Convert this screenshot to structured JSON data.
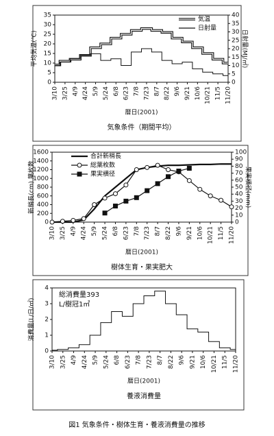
{
  "chart_data": [
    {
      "type": "step",
      "y_label": "平均気温(℃)",
      "y2_label": "日射量(MJ/㎡)",
      "x_label": "暦日(2001)",
      "subtitle": "気象条件（期間平均）",
      "categories": [
        "3/10",
        "3/25",
        "4/9",
        "4/24",
        "5/9",
        "5/24",
        "6/8",
        "6/23",
        "7/8",
        "7/23",
        "8/7",
        "8/22",
        "9/6",
        "9/21",
        "10/6",
        "10/21",
        "11/5",
        "11/20"
      ],
      "series": [
        {
          "name": "気温",
          "color": "#111111",
          "style": "double",
          "values": [
            9,
            11,
            12,
            14,
            18,
            20,
            23,
            25,
            27,
            28,
            27,
            26,
            23,
            21,
            18,
            15,
            12,
            10
          ]
        },
        {
          "name": "日射量",
          "color": "#111111",
          "axis": "y2",
          "values": [
            10,
            12,
            14,
            16,
            17,
            13,
            14,
            10,
            18,
            20,
            18,
            13,
            11,
            12,
            8,
            6,
            5,
            4
          ]
        }
      ],
      "ylim": [
        0,
        35
      ],
      "yticks": [
        0,
        5,
        10,
        15,
        20,
        25,
        30,
        35
      ],
      "y2lim": [
        0,
        40
      ],
      "y2ticks": [
        0,
        5,
        10,
        15,
        20,
        25,
        30,
        35,
        40
      ],
      "legend": "upper right"
    },
    {
      "type": "line",
      "y_label": "新梢長(cm) 葉枚数",
      "y2_label": "果実横径(mm)",
      "x_label": "暦日(2001)",
      "subtitle": "樹体生育・果実肥大",
      "categories": [
        "3/10",
        "3/25",
        "4/9",
        "4/24",
        "5/9",
        "5/24",
        "6/8",
        "6/23",
        "7/8",
        "7/23",
        "8/7",
        "8/22",
        "9/6",
        "9/21",
        "10/6",
        "10/21",
        "11/5",
        "11/20"
      ],
      "series": [
        {
          "name": "合計新梢長",
          "color": "#111111",
          "width": 2.2,
          "values": [
            0,
            0,
            0,
            50,
            300,
            600,
            800,
            1000,
            1200,
            1250,
            1280,
            1300,
            1300,
            1310,
            1320,
            1320,
            1330,
            1330
          ]
        },
        {
          "name": "総葉枚数",
          "color": "#111111",
          "marker": "circle",
          "values": [
            0,
            20,
            40,
            80,
            400,
            550,
            650,
            850,
            1200,
            1250,
            1300,
            1200,
            1150,
            950,
            750,
            600,
            500,
            350
          ]
        },
        {
          "name": "果実横径",
          "color": "#111111",
          "marker": "square",
          "axis": "y2",
          "values": [
            null,
            null,
            null,
            null,
            null,
            13,
            23,
            30,
            35,
            45,
            55,
            65,
            73,
            77,
            null,
            null,
            null,
            null
          ]
        }
      ],
      "ylim": [
        0,
        1600
      ],
      "yticks": [
        0,
        200,
        400,
        600,
        800,
        1000,
        1200,
        1400,
        1600
      ],
      "y2lim": [
        0,
        100
      ],
      "y2ticks": [
        0,
        10,
        20,
        30,
        40,
        50,
        60,
        70,
        80,
        90,
        100
      ],
      "legend": "upper left"
    },
    {
      "type": "step",
      "y_label": "消費量(L/日/㎡)",
      "x_label": "暦日(2001)",
      "subtitle": "養液消費量",
      "annotations": [
        "総消費量393",
        "L/樹冠1㎡"
      ],
      "categories": [
        "3/10",
        "3/25",
        "4/9",
        "4/24",
        "5/9",
        "5/24",
        "6/8",
        "6/23",
        "7/8",
        "7/23",
        "8/7",
        "8/22",
        "9/6",
        "9/21",
        "10/6",
        "10/21",
        "11/5",
        "11/20"
      ],
      "series": [
        {
          "color": "#111111",
          "values": [
            0.05,
            0.1,
            0.2,
            0.4,
            1.0,
            1.8,
            2.5,
            2.2,
            3.0,
            3.5,
            3.8,
            3.0,
            2.3,
            1.4,
            1.2,
            0.6,
            0.2,
            0.1
          ]
        }
      ],
      "ylim": [
        0,
        4
      ],
      "yticks": [
        0,
        1,
        2,
        3,
        4
      ]
    }
  ],
  "caption": "図1 気象条件・樹体生育・養液消費量の推移"
}
